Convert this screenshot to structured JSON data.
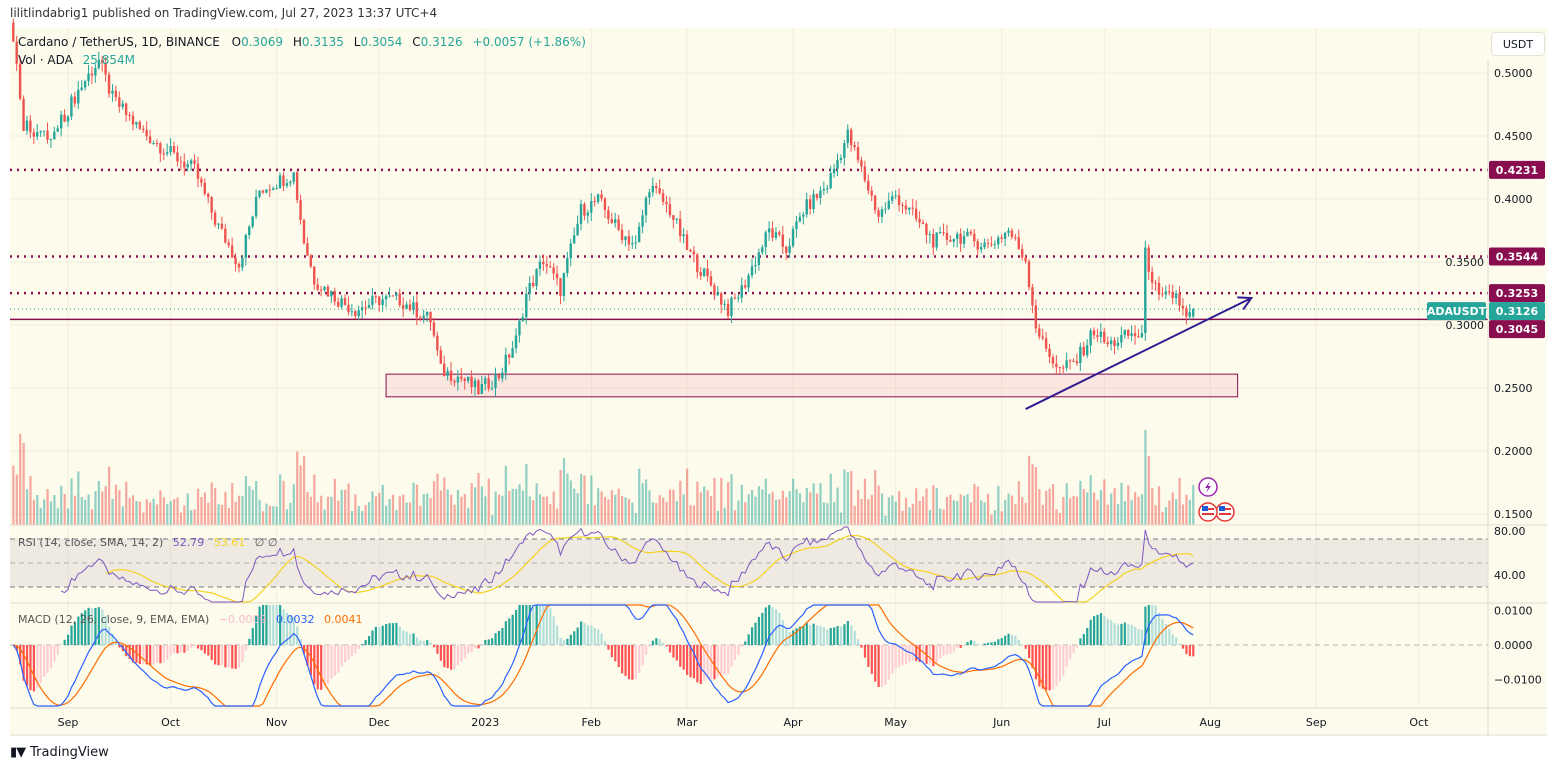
{
  "header": {
    "published": "lilitlindabrig1 published on TradingView.com, Jul 27, 2023 13:37 UTC+4"
  },
  "legend": {
    "symbol": "Cardano / TetherUS, 1D, BINANCE",
    "o_label": "O",
    "o": "0.3069",
    "h_label": "H",
    "h": "0.3135",
    "l_label": "L",
    "l": "0.3054",
    "c_label": "C",
    "c": "0.3126",
    "change": "+0.0057 (+1.86%)",
    "vol_label": "Vol · ADA",
    "vol": "25.854M"
  },
  "rsi_legend": {
    "name": "RSI (14, close, SMA, 14, 2)",
    "rsi": "52.79",
    "sma": "53.61",
    "extra": "∅ ∅"
  },
  "macd_legend": {
    "name": "MACD (12, 26, close, 9, EMA, EMA)",
    "hist": "−0.0009",
    "macd": "0.0032",
    "signal": "0.0041"
  },
  "currency_button": "USDT",
  "footer": {
    "logo_text": "TradingView",
    "logo_mark": "17"
  },
  "colors": {
    "up": "#26a69a",
    "down": "#ef5350",
    "level": "#880e4f",
    "rsi": "#7e57c2",
    "rsi_sma": "#f5d21f",
    "macd": "#2962ff",
    "signal": "#ff6d00",
    "trendline": "#311b92",
    "background": "#fdfbec"
  },
  "icons": [
    "lightning-event-icon",
    "us-flag-event-icon",
    "us-flag-event-icon"
  ],
  "chart_data": {
    "type": "candlestick",
    "symbol": "ADAUSDT",
    "interval": "1D",
    "price_ticks": [
      "0.5000",
      "0.4500",
      "0.4000",
      "0.3500",
      "0.3000",
      "0.2500",
      "0.2000",
      "0.1500"
    ],
    "rsi_ticks": [
      "80.00",
      "40.00"
    ],
    "macd_ticks": [
      "0.0100",
      "0.0000",
      "−0.0100"
    ],
    "time_ticks": [
      {
        "label": "Sep",
        "date": "2022-09-01"
      },
      {
        "label": "Oct",
        "date": "2022-10-01"
      },
      {
        "label": "Nov",
        "date": "2022-11-01"
      },
      {
        "label": "Dec",
        "date": "2022-12-01"
      },
      {
        "label": "2023",
        "date": "2023-01-01"
      },
      {
        "label": "Feb",
        "date": "2023-02-01"
      },
      {
        "label": "Mar",
        "date": "2023-03-01"
      },
      {
        "label": "Apr",
        "date": "2023-04-01"
      },
      {
        "label": "May",
        "date": "2023-05-01"
      },
      {
        "label": "Jun",
        "date": "2023-06-01"
      },
      {
        "label": "Jul",
        "date": "2023-07-01"
      },
      {
        "label": "Aug",
        "date": "2023-08-01"
      },
      {
        "label": "Sep",
        "date": "2023-09-01"
      },
      {
        "label": "Oct",
        "date": "2023-10-01"
      }
    ],
    "price_ylim": [
      0.13,
      0.535
    ],
    "close_path": [
      [
        "2022-08-16",
        0.53
      ],
      [
        "2022-08-19",
        0.46
      ],
      [
        "2022-08-27",
        0.447
      ],
      [
        "2022-09-04",
        0.486
      ],
      [
        "2022-09-10",
        0.51
      ],
      [
        "2022-09-14",
        0.48
      ],
      [
        "2022-09-22",
        0.455
      ],
      [
        "2022-09-29",
        0.44
      ],
      [
        "2022-10-08",
        0.423
      ],
      [
        "2022-10-14",
        0.383
      ],
      [
        "2022-10-21",
        0.348
      ],
      [
        "2022-10-27",
        0.407
      ],
      [
        "2022-11-02",
        0.415
      ],
      [
        "2022-11-06",
        0.42
      ],
      [
        "2022-11-09",
        0.367
      ],
      [
        "2022-11-12",
        0.336
      ],
      [
        "2022-11-19",
        0.32
      ],
      [
        "2022-11-24",
        0.312
      ],
      [
        "2022-12-01",
        0.32
      ],
      [
        "2022-12-07",
        0.32
      ],
      [
        "2022-12-16",
        0.304
      ],
      [
        "2022-12-19",
        0.264
      ],
      [
        "2022-12-25",
        0.258
      ],
      [
        "2022-12-30",
        0.248
      ],
      [
        "2023-01-05",
        0.26
      ],
      [
        "2023-01-10",
        0.288
      ],
      [
        "2023-01-13",
        0.324
      ],
      [
        "2023-01-18",
        0.352
      ],
      [
        "2023-01-23",
        0.328
      ],
      [
        "2023-01-29",
        0.391
      ],
      [
        "2023-02-03",
        0.399
      ],
      [
        "2023-02-09",
        0.375
      ],
      [
        "2023-02-14",
        0.363
      ],
      [
        "2023-02-18",
        0.411
      ],
      [
        "2023-02-24",
        0.391
      ],
      [
        "2023-03-01",
        0.36
      ],
      [
        "2023-03-07",
        0.336
      ],
      [
        "2023-03-13",
        0.312
      ],
      [
        "2023-03-17",
        0.328
      ],
      [
        "2023-03-25",
        0.375
      ],
      [
        "2023-03-30",
        0.36
      ],
      [
        "2023-04-04",
        0.391
      ],
      [
        "2023-04-11",
        0.411
      ],
      [
        "2023-04-17",
        0.451
      ],
      [
        "2023-04-21",
        0.423
      ],
      [
        "2023-04-26",
        0.387
      ],
      [
        "2023-05-01",
        0.403
      ],
      [
        "2023-05-06",
        0.387
      ],
      [
        "2023-05-12",
        0.367
      ],
      [
        "2023-05-19",
        0.371
      ],
      [
        "2023-05-28",
        0.363
      ],
      [
        "2023-06-03",
        0.375
      ],
      [
        "2023-06-08",
        0.352
      ],
      [
        "2023-06-11",
        0.3
      ],
      [
        "2023-06-13",
        0.285
      ],
      [
        "2023-06-18",
        0.264
      ],
      [
        "2023-06-23",
        0.272
      ],
      [
        "2023-06-28",
        0.296
      ],
      [
        "2023-07-02",
        0.284
      ],
      [
        "2023-07-08",
        0.292
      ],
      [
        "2023-07-12",
        0.292
      ],
      [
        "2023-07-13",
        0.356
      ],
      [
        "2023-07-17",
        0.32
      ],
      [
        "2023-07-22",
        0.324
      ],
      [
        "2023-07-25",
        0.304
      ],
      [
        "2023-07-27",
        0.3126
      ]
    ],
    "last_candle": {
      "date": "2023-07-27",
      "open": 0.3069,
      "high": 0.3135,
      "low": 0.3054,
      "close": 0.3126,
      "volume": "25.854M"
    },
    "horizontal_levels": [
      {
        "price": 0.4231,
        "label": "0.4231",
        "style": "dotted"
      },
      {
        "price": 0.3544,
        "label": "0.3544",
        "style": "dotted"
      },
      {
        "price": 0.3253,
        "label": "0.3253",
        "style": "dotted"
      },
      {
        "price": 0.3045,
        "label": "0.3045",
        "style": "solid"
      }
    ],
    "last_price": {
      "price": 0.3126,
      "label": "0.3126",
      "symbol_label": "ADAUSDT"
    },
    "support_zone": {
      "from": "2022-12-03",
      "to": "2023-08-09",
      "low": 0.243,
      "high": 0.261
    },
    "trendline": {
      "from": {
        "date": "2023-06-08",
        "price": 0.2333
      },
      "to": {
        "date": "2023-08-13",
        "price": 0.3214
      }
    },
    "rsi": {
      "length": 14,
      "sma": 14,
      "upper": 70,
      "middle": 50,
      "lower": 30
    },
    "macd": {
      "fast": 12,
      "slow": 26,
      "signal": 9
    }
  }
}
